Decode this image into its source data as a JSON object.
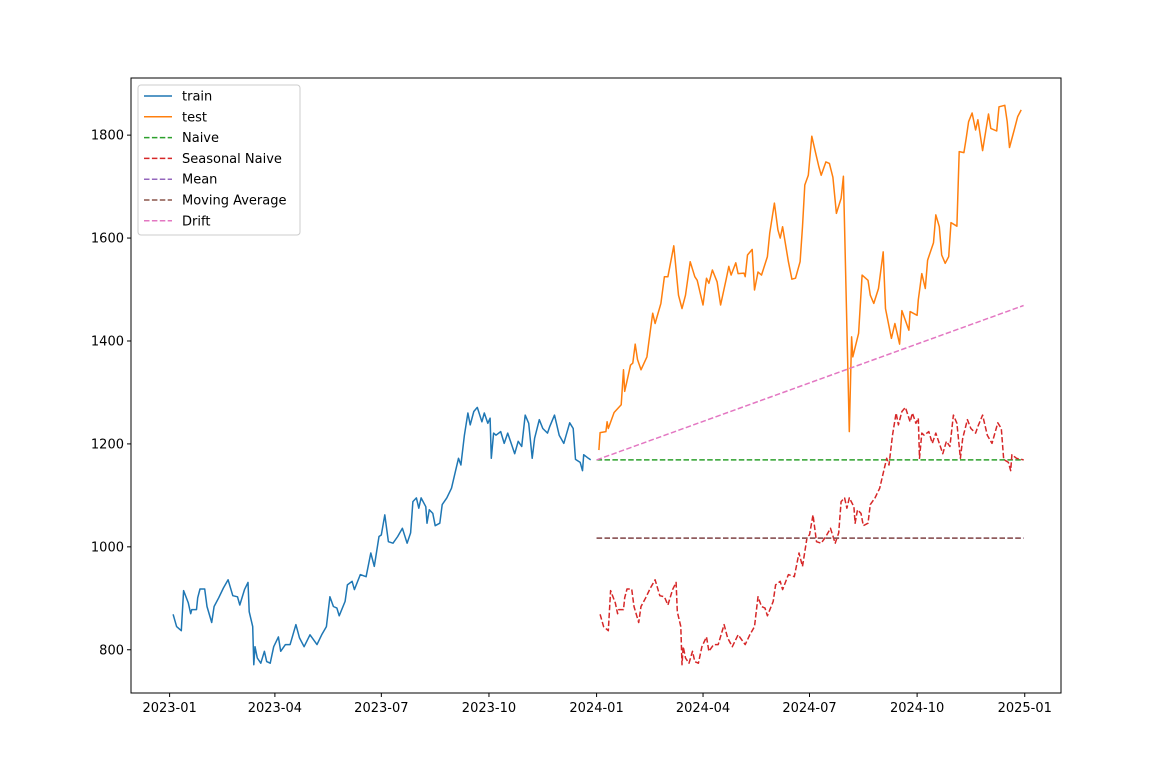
{
  "chart_data": {
    "type": "line",
    "title": "",
    "xlabel": "",
    "ylabel": "",
    "xlim": [
      "2022-11-29",
      "2025-02-01"
    ],
    "ylim": [
      716,
      1911
    ],
    "grid": false,
    "legend_position": "upper-left",
    "x_ticks": [
      "2023-01",
      "2023-04",
      "2023-07",
      "2023-10",
      "2024-01",
      "2024-04",
      "2024-07",
      "2024-10",
      "2025-01"
    ],
    "y_ticks": [
      800,
      1000,
      1200,
      1400,
      1600,
      1800
    ],
    "series": [
      {
        "name": "train",
        "color": "#1f77b4",
        "dash": false,
        "x": [
          "2023-01-04",
          "2023-01-07",
          "2023-01-11",
          "2023-01-13",
          "2023-01-17",
          "2023-01-19",
          "2023-01-20",
          "2023-01-24",
          "2023-01-25",
          "2023-01-27",
          "2023-01-31",
          "2023-02-02",
          "2023-02-06",
          "2023-02-08",
          "2023-02-12",
          "2023-02-16",
          "2023-02-20",
          "2023-02-24",
          "2023-02-28",
          "2023-03-02",
          "2023-03-06",
          "2023-03-09",
          "2023-03-10",
          "2023-03-13",
          "2023-03-14",
          "2023-03-15",
          "2023-03-17",
          "2023-03-20",
          "2023-03-23",
          "2023-03-25",
          "2023-03-28",
          "2023-03-31",
          "2023-04-04",
          "2023-04-06",
          "2023-04-10",
          "2023-04-14",
          "2023-04-19",
          "2023-04-22",
          "2023-04-26",
          "2023-05-01",
          "2023-05-07",
          "2023-05-11",
          "2023-05-15",
          "2023-05-18",
          "2023-05-21",
          "2023-05-24",
          "2023-05-26",
          "2023-05-31",
          "2023-06-02",
          "2023-06-06",
          "2023-06-08",
          "2023-06-13",
          "2023-06-18",
          "2023-06-22",
          "2023-06-25",
          "2023-06-29",
          "2023-07-01",
          "2023-07-04",
          "2023-07-07",
          "2023-07-11",
          "2023-07-15",
          "2023-07-19",
          "2023-07-23",
          "2023-07-26",
          "2023-07-28",
          "2023-07-31",
          "2023-08-02",
          "2023-08-04",
          "2023-08-08",
          "2023-08-09",
          "2023-08-11",
          "2023-08-14",
          "2023-08-16",
          "2023-08-20",
          "2023-08-22",
          "2023-08-26",
          "2023-08-30",
          "2023-09-02",
          "2023-09-05",
          "2023-09-07",
          "2023-09-10",
          "2023-09-13",
          "2023-09-15",
          "2023-09-18",
          "2023-09-21",
          "2023-09-25",
          "2023-09-27",
          "2023-09-30",
          "2023-10-02",
          "2023-10-03",
          "2023-10-05",
          "2023-10-07",
          "2023-10-11",
          "2023-10-14",
          "2023-10-17",
          "2023-10-20",
          "2023-10-23",
          "2023-10-26",
          "2023-10-29",
          "2023-11-01",
          "2023-11-04",
          "2023-11-07",
          "2023-11-09",
          "2023-11-13",
          "2023-11-16",
          "2023-11-20",
          "2023-11-22",
          "2023-11-26",
          "2023-11-30",
          "2023-12-04",
          "2023-12-09",
          "2023-12-12",
          "2023-12-14",
          "2023-12-18",
          "2023-12-20",
          "2023-12-21",
          "2023-12-25",
          "2023-12-27"
        ],
        "y": [
          869,
          845,
          837,
          915,
          891,
          870,
          878,
          878,
          901,
          918,
          918,
          884,
          853,
          884,
          901,
          920,
          936,
          905,
          903,
          887,
          917,
          931,
          874,
          845,
          771,
          806,
          784,
          774,
          797,
          777,
          774,
          806,
          825,
          797,
          810,
          810,
          849,
          823,
          806,
          829,
          810,
          829,
          845,
          903,
          884,
          881,
          866,
          894,
          926,
          933,
          917,
          946,
          942,
          988,
          962,
          1020,
          1023,
          1062,
          1010,
          1007,
          1020,
          1036,
          1007,
          1027,
          1088,
          1095,
          1075,
          1095,
          1078,
          1046,
          1072,
          1065,
          1041,
          1046,
          1082,
          1095,
          1114,
          1143,
          1172,
          1159,
          1217,
          1260,
          1237,
          1263,
          1271,
          1243,
          1260,
          1240,
          1250,
          1172,
          1221,
          1217,
          1224,
          1201,
          1221,
          1201,
          1181,
          1205,
          1195,
          1256,
          1240,
          1172,
          1211,
          1247,
          1230,
          1221,
          1234,
          1256,
          1217,
          1201,
          1241,
          1230,
          1170,
          1164,
          1148,
          1179,
          1172,
          1169
        ]
      },
      {
        "name": "test",
        "color": "#ff7f0e",
        "dash": false,
        "x": [
          "2024-01-03",
          "2024-01-04",
          "2024-01-09",
          "2024-01-10",
          "2024-01-11",
          "2024-01-16",
          "2024-01-22",
          "2024-01-24",
          "2024-01-25",
          "2024-01-30",
          "2024-02-01",
          "2024-02-03",
          "2024-02-05",
          "2024-02-08",
          "2024-02-13",
          "2024-02-16",
          "2024-02-18",
          "2024-02-20",
          "2024-02-25",
          "2024-02-28",
          "2024-03-02",
          "2024-03-07",
          "2024-03-11",
          "2024-03-14",
          "2024-03-17",
          "2024-03-21",
          "2024-03-25",
          "2024-03-27",
          "2024-04-01",
          "2024-04-04",
          "2024-04-06",
          "2024-04-09",
          "2024-04-13",
          "2024-04-16",
          "2024-04-21",
          "2024-04-23",
          "2024-04-25",
          "2024-04-29",
          "2024-05-01",
          "2024-05-06",
          "2024-05-07",
          "2024-05-09",
          "2024-05-13",
          "2024-05-15",
          "2024-05-18",
          "2024-05-21",
          "2024-05-26",
          "2024-05-28",
          "2024-06-01",
          "2024-06-04",
          "2024-06-06",
          "2024-06-08",
          "2024-06-13",
          "2024-06-16",
          "2024-06-19",
          "2024-06-23",
          "2024-06-25",
          "2024-06-27",
          "2024-06-30",
          "2024-07-03",
          "2024-07-06",
          "2024-07-09",
          "2024-07-11",
          "2024-07-15",
          "2024-07-18",
          "2024-07-21",
          "2024-07-24",
          "2024-07-28",
          "2024-07-30",
          "2024-08-04",
          "2024-08-06",
          "2024-08-07",
          "2024-08-12",
          "2024-08-15",
          "2024-08-20",
          "2024-08-22",
          "2024-08-25",
          "2024-08-29",
          "2024-09-02",
          "2024-09-04",
          "2024-09-09",
          "2024-09-12",
          "2024-09-16",
          "2024-09-18",
          "2024-09-24",
          "2024-09-25",
          "2024-10-01",
          "2024-10-02",
          "2024-10-05",
          "2024-10-08",
          "2024-10-10",
          "2024-10-15",
          "2024-10-17",
          "2024-10-20",
          "2024-10-22",
          "2024-10-25",
          "2024-10-28",
          "2024-10-30",
          "2024-11-04",
          "2024-11-06",
          "2024-11-10",
          "2024-11-12",
          "2024-11-14",
          "2024-11-17",
          "2024-11-20",
          "2024-11-22",
          "2024-11-26",
          "2024-12-01",
          "2024-12-03",
          "2024-12-08",
          "2024-12-10",
          "2024-12-15",
          "2024-12-17",
          "2024-12-19",
          "2024-12-23",
          "2024-12-26",
          "2024-12-29"
        ],
        "y": [
          1188,
          1222,
          1224,
          1243,
          1230,
          1261,
          1276,
          1344,
          1302,
          1353,
          1357,
          1394,
          1364,
          1344,
          1369,
          1421,
          1454,
          1434,
          1473,
          1525,
          1525,
          1585,
          1489,
          1463,
          1489,
          1554,
          1525,
          1518,
          1470,
          1522,
          1512,
          1538,
          1515,
          1470,
          1522,
          1545,
          1528,
          1552,
          1531,
          1532,
          1525,
          1567,
          1578,
          1499,
          1534,
          1528,
          1564,
          1609,
          1668,
          1616,
          1600,
          1622,
          1554,
          1520,
          1522,
          1554,
          1622,
          1703,
          1722,
          1798,
          1768,
          1739,
          1722,
          1748,
          1745,
          1718,
          1648,
          1677,
          1720,
          1224,
          1408,
          1369,
          1415,
          1528,
          1518,
          1489,
          1473,
          1502,
          1573,
          1463,
          1405,
          1434,
          1394,
          1459,
          1421,
          1457,
          1450,
          1480,
          1531,
          1502,
          1557,
          1591,
          1645,
          1622,
          1567,
          1551,
          1564,
          1630,
          1623,
          1768,
          1766,
          1794,
          1826,
          1843,
          1810,
          1830,
          1770,
          1841,
          1813,
          1808,
          1855,
          1858,
          1826,
          1776,
          1810,
          1836,
          1849
        ]
      },
      {
        "name": "Naive",
        "color": "#2ca02c",
        "dash": true,
        "x": [
          "2024-01-01",
          "2024-12-31"
        ],
        "y": [
          1169,
          1169
        ]
      },
      {
        "name": "Seasonal Naive",
        "color": "#d62728",
        "dash": true,
        "x": [
          "2024-01-04",
          "2024-01-07",
          "2024-01-11",
          "2024-01-13",
          "2024-01-17",
          "2024-01-19",
          "2024-01-20",
          "2024-01-24",
          "2024-01-25",
          "2024-01-27",
          "2024-01-31",
          "2024-02-02",
          "2024-02-06",
          "2024-02-08",
          "2024-02-12",
          "2024-02-16",
          "2024-02-20",
          "2024-02-24",
          "2024-02-28",
          "2024-03-02",
          "2024-03-06",
          "2024-03-09",
          "2024-03-10",
          "2024-03-13",
          "2024-03-14",
          "2024-03-15",
          "2024-03-17",
          "2024-03-20",
          "2024-03-23",
          "2024-03-25",
          "2024-03-28",
          "2024-03-31",
          "2024-04-04",
          "2024-04-06",
          "2024-04-10",
          "2024-04-14",
          "2024-04-19",
          "2024-04-22",
          "2024-04-26",
          "2024-05-01",
          "2024-05-07",
          "2024-05-11",
          "2024-05-15",
          "2024-05-18",
          "2024-05-21",
          "2024-05-24",
          "2024-05-26",
          "2024-05-31",
          "2024-06-02",
          "2024-06-06",
          "2024-06-08",
          "2024-06-13",
          "2024-06-18",
          "2024-06-22",
          "2024-06-25",
          "2024-06-29",
          "2024-07-01",
          "2024-07-04",
          "2024-07-07",
          "2024-07-11",
          "2024-07-15",
          "2024-07-19",
          "2024-07-23",
          "2024-07-26",
          "2024-07-28",
          "2024-07-31",
          "2024-08-02",
          "2024-08-04",
          "2024-08-08",
          "2024-08-09",
          "2024-08-11",
          "2024-08-14",
          "2024-08-16",
          "2024-08-20",
          "2024-08-22",
          "2024-08-26",
          "2024-08-30",
          "2024-09-02",
          "2024-09-05",
          "2024-09-07",
          "2024-09-10",
          "2024-09-13",
          "2024-09-15",
          "2024-09-18",
          "2024-09-21",
          "2024-09-25",
          "2024-09-27",
          "2024-09-30",
          "2024-10-02",
          "2024-10-03",
          "2024-10-05",
          "2024-10-07",
          "2024-10-11",
          "2024-10-14",
          "2024-10-17",
          "2024-10-20",
          "2024-10-23",
          "2024-10-26",
          "2024-10-29",
          "2024-11-01",
          "2024-11-04",
          "2024-11-07",
          "2024-11-09",
          "2024-11-13",
          "2024-11-16",
          "2024-11-20",
          "2024-11-22",
          "2024-11-26",
          "2024-11-30",
          "2024-12-04",
          "2024-12-09",
          "2024-12-12",
          "2024-12-14",
          "2024-12-18",
          "2024-12-20",
          "2024-12-21",
          "2024-12-25",
          "2024-12-31"
        ],
        "y": [
          869,
          845,
          837,
          915,
          891,
          870,
          878,
          878,
          901,
          918,
          918,
          884,
          853,
          884,
          901,
          920,
          936,
          905,
          903,
          887,
          917,
          931,
          874,
          845,
          771,
          806,
          784,
          774,
          797,
          777,
          774,
          806,
          825,
          797,
          810,
          810,
          849,
          823,
          806,
          829,
          810,
          829,
          845,
          903,
          884,
          881,
          866,
          894,
          926,
          933,
          917,
          946,
          942,
          988,
          962,
          1020,
          1023,
          1062,
          1010,
          1007,
          1020,
          1036,
          1007,
          1027,
          1088,
          1095,
          1075,
          1095,
          1078,
          1046,
          1072,
          1065,
          1041,
          1046,
          1082,
          1095,
          1114,
          1143,
          1172,
          1159,
          1217,
          1260,
          1237,
          1263,
          1271,
          1243,
          1260,
          1240,
          1250,
          1172,
          1221,
          1217,
          1224,
          1201,
          1221,
          1201,
          1181,
          1205,
          1195,
          1256,
          1240,
          1172,
          1211,
          1247,
          1230,
          1221,
          1234,
          1256,
          1217,
          1201,
          1241,
          1230,
          1170,
          1164,
          1148,
          1179,
          1172,
          1169
        ]
      },
      {
        "name": "Mean",
        "color": "#9467bd",
        "dash": true,
        "x": [
          "2024-01-01",
          "2024-12-31"
        ],
        "y": [
          1017,
          1017
        ]
      },
      {
        "name": "Moving Average",
        "color": "#8c564b",
        "dash": true,
        "x": [
          "2024-01-01",
          "2024-12-31"
        ],
        "y": [
          1017,
          1017
        ]
      },
      {
        "name": "Drift",
        "color": "#e377c2",
        "dash": true,
        "x": [
          "2024-01-01",
          "2024-12-31"
        ],
        "y": [
          1169,
          1469
        ]
      }
    ]
  }
}
